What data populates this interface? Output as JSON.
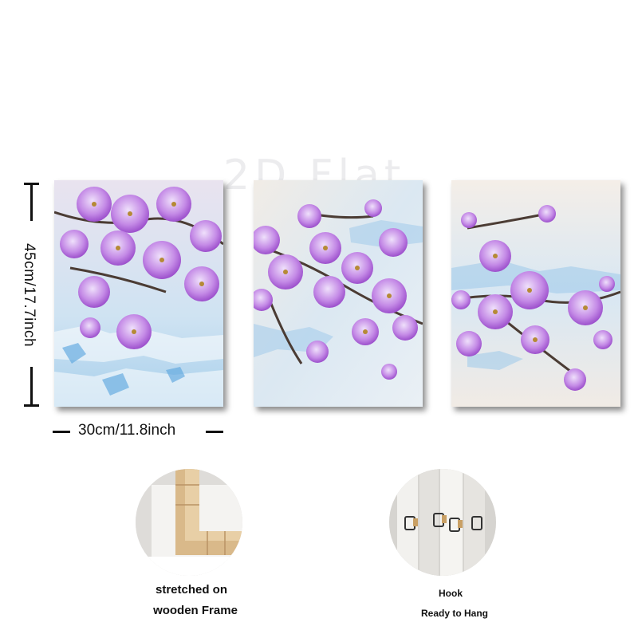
{
  "watermark": "2D Flat",
  "dimensions": {
    "height_label": "45cm/17.7inch",
    "width_label": "30cm/11.8inch"
  },
  "features": {
    "frame": {
      "line1": "stretched on",
      "line2": "wooden Frame"
    },
    "hook": {
      "line1": "Hook",
      "line2": "Ready to Hang"
    }
  },
  "colors": {
    "petal": "#a24ad0",
    "petal_light": "#d6b2ee",
    "sky": "#8fc3e6",
    "cream": "#f3ece4",
    "branch": "#5a4a40",
    "gold": "#b58a35"
  }
}
